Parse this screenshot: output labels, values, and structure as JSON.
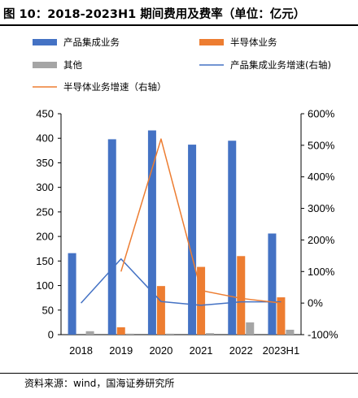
{
  "figure": {
    "title": "图 10：2018-2023H1 期间费用及费率（单位：亿元）",
    "source": "资料来源：wind，国海证券研究所"
  },
  "chart_data": {
    "type": "bar",
    "categories": [
      "2018",
      "2019",
      "2020",
      "2021",
      "2022",
      "2023H1"
    ],
    "series": [
      {
        "name": "产品集成业务",
        "kind": "bar",
        "axis": "left",
        "color": "#4472C4",
        "values": [
          166,
          398,
          416,
          387,
          395,
          206
        ]
      },
      {
        "name": "半导体业务",
        "kind": "bar",
        "axis": "left",
        "color": "#ED7D31",
        "values": [
          null,
          15,
          99,
          138,
          160,
          76
        ]
      },
      {
        "name": "其他",
        "kind": "bar",
        "axis": "left",
        "color": "#A5A5A5",
        "values": [
          7,
          2,
          2,
          3,
          25,
          10
        ]
      },
      {
        "name": "产品集成业务增速(右轴)",
        "kind": "line",
        "axis": "right",
        "color": "#4472C4",
        "values": [
          0,
          140,
          5,
          -7,
          4,
          4
        ]
      },
      {
        "name": "半导体业务增速（右轴）",
        "kind": "line",
        "axis": "right",
        "color": "#ED7D31",
        "values": [
          null,
          100,
          520,
          40,
          15,
          0
        ]
      }
    ],
    "left_axis": {
      "min": 0,
      "max": 450,
      "step": 50,
      "ticks": [
        "0",
        "50",
        "100",
        "150",
        "200",
        "250",
        "300",
        "350",
        "400",
        "450"
      ]
    },
    "right_axis": {
      "min": -100,
      "max": 600,
      "step": 100,
      "ticks": [
        "-100%",
        "0%",
        "100%",
        "200%",
        "300%",
        "400%",
        "500%",
        "600%"
      ]
    },
    "grid": false,
    "legend_placement": "top"
  }
}
